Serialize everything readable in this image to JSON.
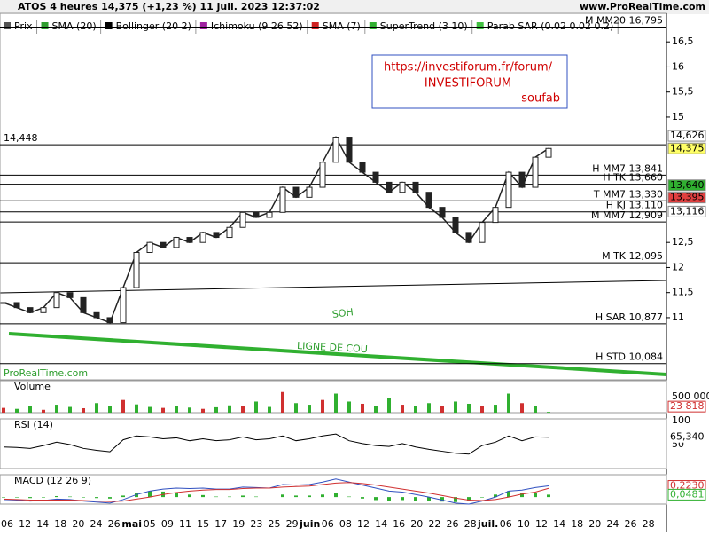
{
  "header": {
    "title": "ATOS 4 heures 14,375 (+1,23 %) 11 juil. 2023 12:37:02",
    "site": "www.ProRealTime.com"
  },
  "legend": [
    {
      "label": "Prix",
      "color": "#555555"
    },
    {
      "label": "SMA (20)",
      "color": "#2e9e2e"
    },
    {
      "label": "Bollinger (20 2)",
      "color": "#000000"
    },
    {
      "label": "Ichimoku (9 26 52)",
      "color": "#a020a0"
    },
    {
      "label": "SMA (7)",
      "color": "#d02020"
    },
    {
      "label": "SuperTrend (3 10)",
      "color": "#30b030"
    },
    {
      "label": "Parab SAR (0.02 0.02 0.2)",
      "color": "#40c040"
    }
  ],
  "annotations": {
    "url": "https://investiforum.fr/forum/",
    "name": "INVESTIFORUM",
    "author": "soufab",
    "soh": "SOH",
    "neckline": "LIGNE DE COU",
    "watermark": "ProRealTime.com"
  },
  "chart_data": {
    "type": "line",
    "title": "Prix",
    "series": [
      {
        "name": "Prix",
        "color": "#222222",
        "values": [
          11.3,
          11.2,
          11.1,
          11.2,
          11.5,
          11.4,
          11.1,
          11.0,
          10.9,
          11.6,
          12.3,
          12.5,
          12.4,
          12.6,
          12.5,
          12.7,
          12.6,
          12.8,
          13.1,
          13.0,
          13.1,
          13.6,
          13.4,
          13.6,
          14.1,
          14.6,
          14.1,
          13.9,
          13.7,
          13.5,
          13.7,
          13.5,
          13.2,
          13.0,
          12.7,
          12.5,
          12.9,
          13.2,
          13.9,
          13.6,
          14.2,
          14.375
        ]
      }
    ],
    "ylim": [
      9.76,
      17.07
    ],
    "yticks": [
      11,
      {
        "value": 11.5,
        "label": "11,5"
      },
      12,
      {
        "value": 12.5,
        "label": "12,5"
      },
      15,
      {
        "value": 15.5,
        "label": "15,5"
      },
      16,
      {
        "value": 16.5,
        "label": "16,5"
      }
    ],
    "levels": [
      {
        "value": 16.795,
        "label": "M MM20 16,795"
      },
      {
        "value": 14.448,
        "label": "14,448"
      },
      {
        "value": 13.841,
        "label": "H MM7 13,841"
      },
      {
        "value": 13.66,
        "label": "H TK 13,660"
      },
      {
        "value": 13.33,
        "label": "T MM7 13,330"
      },
      {
        "value": 13.11,
        "label": "H KJ 13,110"
      },
      {
        "value": 12.909,
        "label": "M MM7 12,909"
      },
      {
        "value": 12.095,
        "label": "M TK 12,095"
      },
      {
        "value": 10.877,
        "label": "H SAR 10,877"
      },
      {
        "value": 10.084,
        "label": "H STD 10,084"
      }
    ],
    "price_tags": [
      {
        "value": 14.626,
        "label": "14,626",
        "color": "#ffffff"
      },
      {
        "value": 14.375,
        "label": "14,375",
        "color": "#ffff66"
      },
      {
        "value": 13.64,
        "label": "13,640",
        "color": "#30b030"
      },
      {
        "value": 13.395,
        "label": "13,395",
        "color": "#e04040"
      },
      {
        "value": 13.116,
        "label": "13,116",
        "color": "#ffffff"
      }
    ]
  },
  "volume": {
    "name": "Volume",
    "values": [
      150000,
      120000,
      200000,
      90000,
      250000,
      180000,
      140000,
      300000,
      220000,
      400000,
      260000,
      180000,
      150000,
      200000,
      160000,
      120000,
      170000,
      230000,
      200000,
      350000,
      180000,
      650000,
      300000,
      250000,
      400000,
      600000,
      350000,
      280000,
      200000,
      450000,
      250000,
      220000,
      300000,
      200000,
      350000,
      280000,
      220000,
      250000,
      600000,
      300000,
      200000,
      23818
    ],
    "ylim": [
      0,
      950000
    ],
    "yticks": [
      {
        "value": 500000,
        "label": "500 000"
      }
    ],
    "last": {
      "value": 23818,
      "label": "23 818"
    }
  },
  "rsi": {
    "name": "RSI (14)",
    "values": [
      45,
      44,
      42,
      48,
      55,
      50,
      42,
      38,
      35,
      60,
      68,
      66,
      62,
      64,
      58,
      62,
      58,
      60,
      66,
      60,
      62,
      68,
      58,
      62,
      68,
      72,
      58,
      52,
      48,
      46,
      52,
      45,
      40,
      36,
      32,
      30,
      48,
      55,
      68,
      58,
      66,
      65.34
    ],
    "ylim": [
      0,
      100
    ],
    "yticks": [
      100,
      50
    ],
    "last": {
      "value": 65.34,
      "label": "65,340"
    }
  },
  "macd": {
    "name": "MACD (12 26 9)",
    "values": [
      -0.05,
      -0.06,
      -0.08,
      -0.07,
      -0.04,
      -0.05,
      -0.08,
      -0.1,
      -0.12,
      -0.05,
      0.05,
      0.12,
      0.16,
      0.18,
      0.17,
      0.18,
      0.16,
      0.16,
      0.2,
      0.19,
      0.18,
      0.25,
      0.24,
      0.25,
      0.3,
      0.36,
      0.3,
      0.24,
      0.18,
      0.12,
      0.1,
      0.05,
      0.0,
      -0.06,
      -0.12,
      -0.14,
      -0.08,
      0.0,
      0.12,
      0.14,
      0.19,
      0.223
    ],
    "signal": [
      -0.04,
      -0.05,
      -0.06,
      -0.06,
      -0.06,
      -0.06,
      -0.07,
      -0.08,
      -0.09,
      -0.08,
      -0.04,
      0.0,
      0.05,
      0.09,
      0.12,
      0.14,
      0.15,
      0.15,
      0.17,
      0.18,
      0.18,
      0.2,
      0.21,
      0.22,
      0.25,
      0.28,
      0.29,
      0.27,
      0.24,
      0.2,
      0.16,
      0.12,
      0.08,
      0.03,
      -0.02,
      -0.06,
      -0.07,
      -0.05,
      0.0,
      0.06,
      0.1,
      0.1749
    ],
    "ylim": [
      -0.14,
      0.41
    ],
    "last": [
      {
        "value": 0.223,
        "label": "0,2230"
      },
      {
        "value": 0.0481,
        "label": "0,0481"
      }
    ]
  },
  "x_axis_labels": [
    "06",
    "12",
    "14",
    "18",
    "20",
    "24",
    "26",
    "mai",
    "05",
    "09",
    "11",
    "15",
    "17",
    "19",
    "23",
    "25",
    "29",
    "juin",
    "06",
    "08",
    "12",
    "14",
    "16",
    "20",
    "22",
    "26",
    "28",
    "juil.",
    "06",
    "10",
    "12",
    "14",
    "18",
    "20",
    "24",
    "26",
    "28"
  ]
}
